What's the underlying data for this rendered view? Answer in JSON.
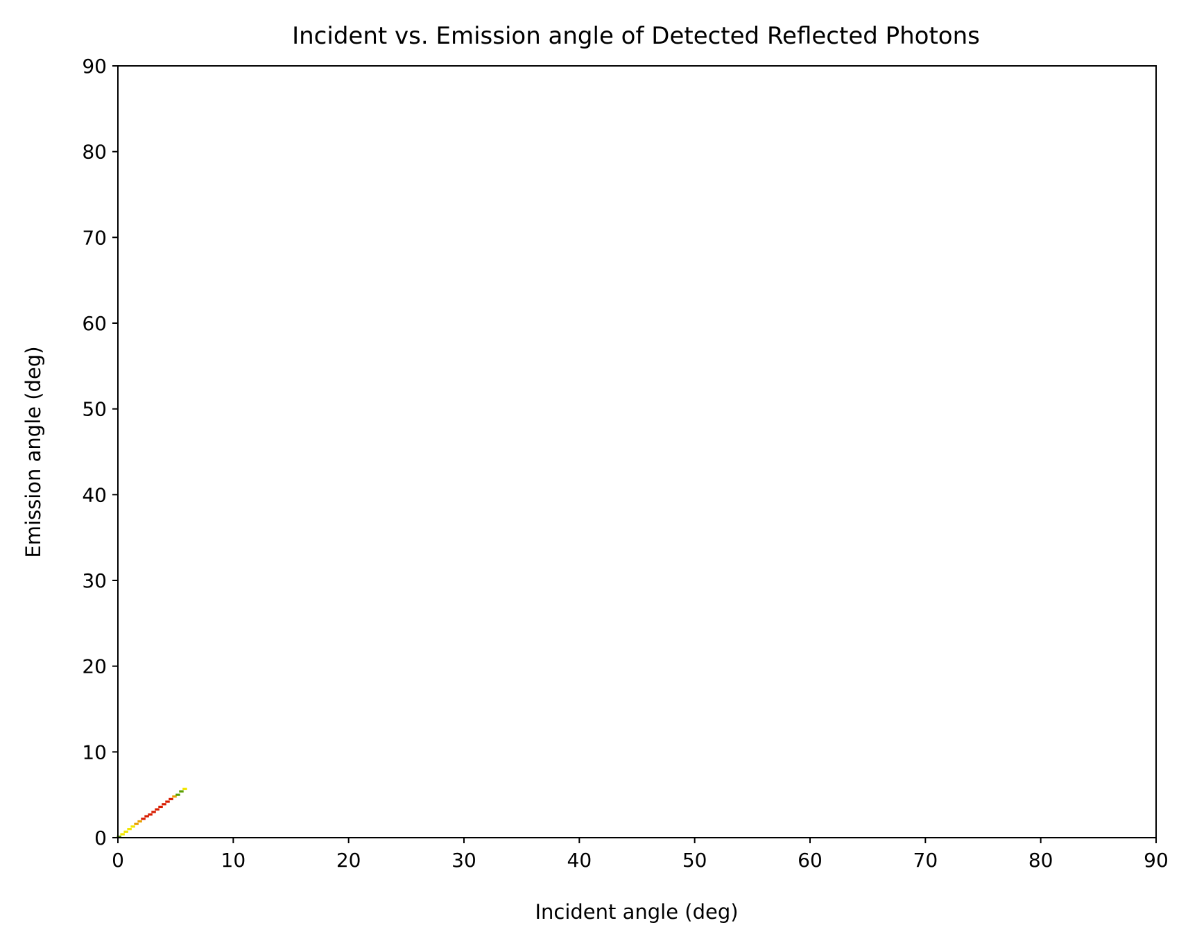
{
  "chart_data": {
    "type": "heatmap",
    "title": "Incident vs. Emission angle of Detected Reflected Photons",
    "xlabel": "Incident angle (deg)",
    "ylabel": "Emission angle (deg)",
    "xlim": [
      0,
      90
    ],
    "ylim": [
      0,
      90
    ],
    "xticks": [
      "0",
      "10",
      "20",
      "30",
      "40",
      "50",
      "60",
      "70",
      "80",
      "90"
    ],
    "yticks": [
      "0",
      "10",
      "20",
      "30",
      "40",
      "50",
      "60",
      "70",
      "80",
      "90"
    ],
    "grid": false,
    "legend": "none",
    "colors": {
      "low": "#f2e600",
      "mid": "#e8a000",
      "high": "#d81c00",
      "tail": "#5aa000"
    },
    "cells": [
      {
        "x": 0.1,
        "y": 0.1,
        "level": "tail"
      },
      {
        "x": 0.4,
        "y": 0.4,
        "level": "low"
      },
      {
        "x": 0.7,
        "y": 0.7,
        "level": "low"
      },
      {
        "x": 1.0,
        "y": 1.0,
        "level": "low"
      },
      {
        "x": 1.3,
        "y": 1.3,
        "level": "low"
      },
      {
        "x": 1.6,
        "y": 1.6,
        "level": "mid"
      },
      {
        "x": 1.9,
        "y": 1.9,
        "level": "mid"
      },
      {
        "x": 2.2,
        "y": 2.2,
        "level": "high"
      },
      {
        "x": 2.5,
        "y": 2.5,
        "level": "high"
      },
      {
        "x": 2.8,
        "y": 2.7,
        "level": "high"
      },
      {
        "x": 3.1,
        "y": 3.0,
        "level": "high"
      },
      {
        "x": 3.4,
        "y": 3.3,
        "level": "high"
      },
      {
        "x": 3.7,
        "y": 3.6,
        "level": "high"
      },
      {
        "x": 4.0,
        "y": 3.9,
        "level": "high"
      },
      {
        "x": 4.3,
        "y": 4.2,
        "level": "high"
      },
      {
        "x": 4.6,
        "y": 4.5,
        "level": "high"
      },
      {
        "x": 4.9,
        "y": 4.8,
        "level": "mid"
      },
      {
        "x": 5.2,
        "y": 5.0,
        "level": "tail"
      },
      {
        "x": 5.5,
        "y": 5.4,
        "level": "tail"
      },
      {
        "x": 5.8,
        "y": 5.7,
        "level": "low"
      }
    ]
  }
}
